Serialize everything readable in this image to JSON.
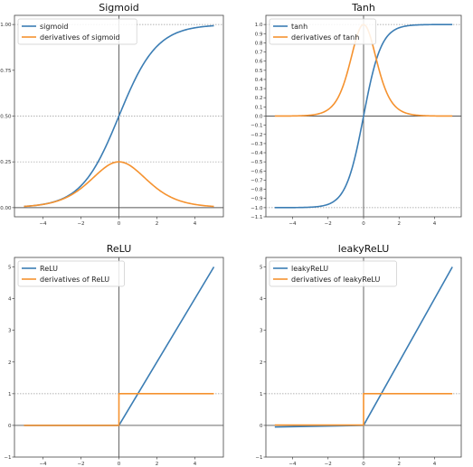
{
  "colors": {
    "series1": "#3b7db4",
    "series2": "#f5922f",
    "axis": "#555555",
    "ref": "#999999",
    "frame": "#444444"
  },
  "chart_data": [
    {
      "type": "line",
      "title": "Sigmoid",
      "function": "sigmoid",
      "xlim": [
        -5.5,
        5.5
      ],
      "ylim": [
        -0.05,
        1.05
      ],
      "x_ticks": [
        -4,
        -2,
        0,
        2,
        4
      ],
      "x_tick_labels": [
        "−4",
        "−2",
        "0",
        "2",
        "4"
      ],
      "y_ticks": [
        0,
        0.25,
        0.5,
        0.75,
        1.0
      ],
      "y_tick_labels": [
        "0.00",
        "0.25",
        "0.50",
        "0.75",
        "1.00"
      ],
      "ref_lines_y": [
        0.25,
        0.5,
        1.0
      ],
      "legend": "top-left",
      "series": [
        {
          "name": "sigmoid",
          "x": [
            -5,
            -4,
            -3,
            -2,
            -1,
            0,
            1,
            2,
            3,
            4,
            5
          ],
          "y": [
            0.007,
            0.018,
            0.047,
            0.119,
            0.269,
            0.5,
            0.731,
            0.881,
            0.953,
            0.982,
            0.993
          ]
        },
        {
          "name": "derivatives of sigmoid",
          "x": [
            -5,
            -4,
            -3,
            -2,
            -1,
            0,
            1,
            2,
            3,
            4,
            5
          ],
          "y": [
            0.007,
            0.018,
            0.045,
            0.105,
            0.197,
            0.25,
            0.197,
            0.105,
            0.045,
            0.018,
            0.007
          ]
        }
      ]
    },
    {
      "type": "line",
      "title": "Tanh",
      "function": "tanh",
      "xlim": [
        -5.5,
        5.5
      ],
      "ylim": [
        -1.1,
        1.1
      ],
      "x_ticks": [
        -4,
        -2,
        0,
        2,
        4
      ],
      "x_tick_labels": [
        "−4",
        "−2",
        "0",
        "2",
        "4"
      ],
      "y_ticks": [
        -1.1,
        -1.0,
        -0.9,
        -0.8,
        -0.7,
        -0.6,
        -0.5,
        -0.4,
        -0.3,
        -0.2,
        -0.1,
        0.0,
        0.1,
        0.2,
        0.3,
        0.4,
        0.5,
        0.6,
        0.7,
        0.8,
        0.9,
        1.0
      ],
      "y_tick_labels": [
        "−1.1",
        "−1.0",
        "−0.9",
        "−0.8",
        "−0.7",
        "−0.6",
        "−0.5",
        "−0.4",
        "−0.3",
        "−0.2",
        "−0.1",
        "0.0",
        "0.1",
        "0.2",
        "0.3",
        "0.4",
        "0.5",
        "0.6",
        "0.7",
        "0.8",
        "0.9",
        "1.0"
      ],
      "ref_lines_y": [
        -1.0,
        1.0
      ],
      "legend": "top-left",
      "series": [
        {
          "name": "tanh",
          "x": [
            -5,
            -4,
            -3,
            -2,
            -1,
            0,
            1,
            2,
            3,
            4,
            5
          ],
          "y": [
            -1.0,
            -0.999,
            -0.995,
            -0.964,
            -0.762,
            0.0,
            0.762,
            0.964,
            0.995,
            0.999,
            1.0
          ]
        },
        {
          "name": "derivatives of tanh",
          "x": [
            -5,
            -4,
            -3,
            -2,
            -1,
            0,
            1,
            2,
            3,
            4,
            5
          ],
          "y": [
            0.0,
            0.001,
            0.01,
            0.071,
            0.42,
            1.0,
            0.42,
            0.071,
            0.01,
            0.001,
            0.0
          ]
        }
      ]
    },
    {
      "type": "line",
      "title": "ReLU",
      "function": "relu",
      "xlim": [
        -5.5,
        5.5
      ],
      "ylim": [
        -1,
        5.3
      ],
      "x_ticks": [
        -4,
        -2,
        0,
        2,
        4
      ],
      "x_tick_labels": [
        "−4",
        "−2",
        "0",
        "2",
        "4"
      ],
      "y_ticks": [
        -1,
        0,
        1,
        2,
        3,
        4,
        5
      ],
      "y_tick_labels": [
        "−1",
        "0",
        "1",
        "2",
        "3",
        "4",
        "5"
      ],
      "ref_lines_y": [
        1
      ],
      "legend": "top-left",
      "series": [
        {
          "name": "ReLU",
          "x": [
            -5,
            0,
            5
          ],
          "y": [
            0,
            0,
            5
          ]
        },
        {
          "name": "derivatives of ReLU",
          "x": [
            -5,
            0,
            0,
            5
          ],
          "y": [
            0,
            0,
            1,
            1
          ]
        }
      ]
    },
    {
      "type": "line",
      "title": "leakyReLU",
      "function": "leaky_relu",
      "xlim": [
        -5.5,
        5.5
      ],
      "ylim": [
        -1,
        5.3
      ],
      "x_ticks": [
        -4,
        -2,
        0,
        2,
        4
      ],
      "x_tick_labels": [
        "−4",
        "−2",
        "0",
        "2",
        "4"
      ],
      "y_ticks": [
        -1,
        0,
        1,
        2,
        3,
        4,
        5
      ],
      "y_tick_labels": [
        "−1",
        "0",
        "1",
        "2",
        "3",
        "4",
        "5"
      ],
      "ref_lines_y": [
        1
      ],
      "legend": "top-left",
      "series": [
        {
          "name": "leakyReLU",
          "x": [
            -5,
            0,
            5
          ],
          "y": [
            -0.05,
            0,
            5
          ]
        },
        {
          "name": "derivatives of leakyReLU",
          "x": [
            -5,
            0,
            0,
            5
          ],
          "y": [
            0.01,
            0.01,
            1,
            1
          ]
        }
      ]
    }
  ]
}
